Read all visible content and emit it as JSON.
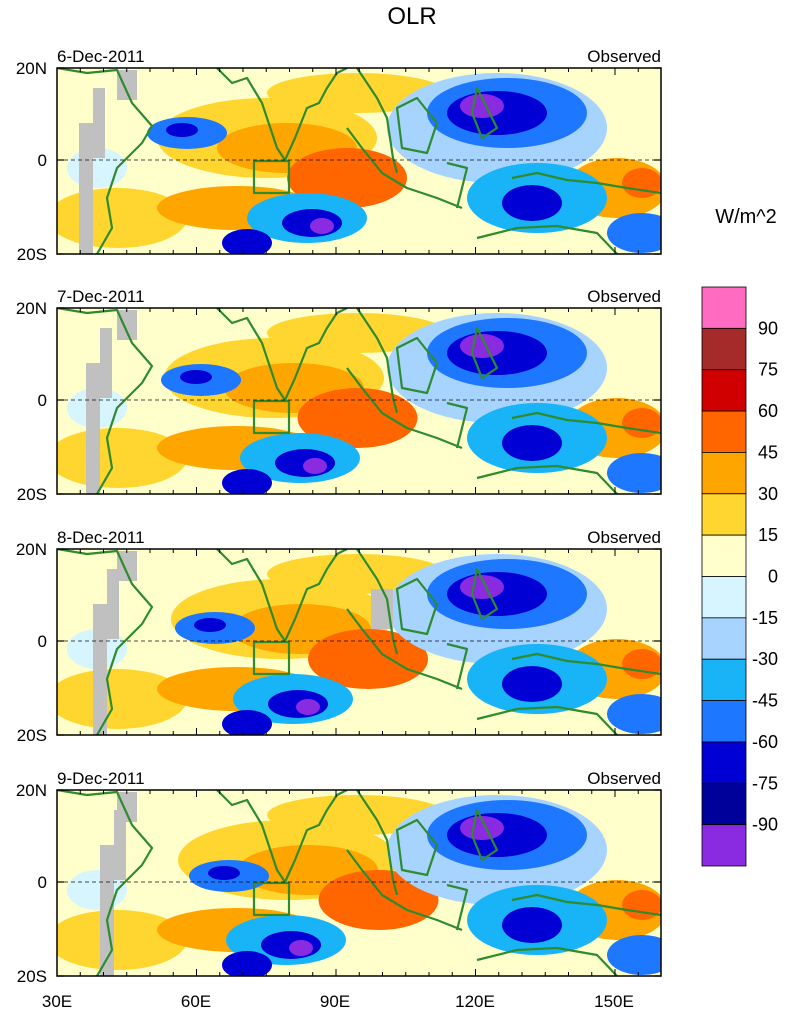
{
  "title": "OLR",
  "units": "W/m^2",
  "panels": [
    {
      "date": "6-Dec-2011",
      "label": "Observed"
    },
    {
      "date": "7-Dec-2011",
      "label": "Observed"
    },
    {
      "date": "8-Dec-2011",
      "label": "Observed"
    },
    {
      "date": "9-Dec-2011",
      "label": "Observed"
    }
  ],
  "lat_ticks": [
    "20N",
    "0",
    "20S"
  ],
  "lon_ticks": [
    "30E",
    "60E",
    "90E",
    "120E",
    "150E"
  ],
  "colorbar": {
    "labels": [
      "90",
      "75",
      "60",
      "45",
      "30",
      "15",
      "0",
      "-15",
      "-30",
      "-45",
      "-60",
      "-75",
      "-90"
    ],
    "colors": [
      "#ff6bc1",
      "#a52a2a",
      "#d00000",
      "#ff6600",
      "#ffa500",
      "#ffd630",
      "#ffffcc",
      "#d6f5ff",
      "#a6d4ff",
      "#18b4f7",
      "#1e78ff",
      "#0000d4",
      "#00009a",
      "#8a2be2"
    ]
  },
  "chart_data": {
    "type": "heatmap",
    "title": "OLR",
    "units": "W/m^2",
    "lon_range": [
      30,
      160
    ],
    "lat_range": [
      -20,
      20
    ],
    "lon_ticks": [
      "30E",
      "60E",
      "90E",
      "120E",
      "150E"
    ],
    "lat_ticks": [
      "20N",
      "0",
      "20S"
    ],
    "levels": [
      90,
      75,
      60,
      45,
      30,
      15,
      0,
      -15,
      -30,
      -45,
      -60,
      -75,
      -90
    ],
    "panels": [
      "6-Dec-2011",
      "7-Dec-2011",
      "8-Dec-2011",
      "9-Dec-2011"
    ],
    "observed": true
  }
}
